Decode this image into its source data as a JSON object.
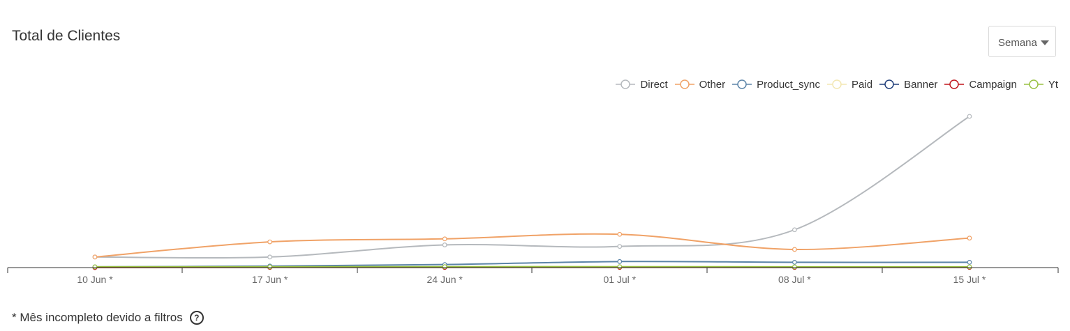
{
  "header": {
    "title": "Total de Clientes",
    "period_select": {
      "selected": "Semana"
    }
  },
  "chart_data": {
    "type": "line",
    "title": "Total de Clientes",
    "xlabel": "",
    "ylabel": "",
    "categories": [
      "10 Jun *",
      "17 Jun *",
      "24 Jun *",
      "01 Jul *",
      "08 Jul *",
      "15 Jul *"
    ],
    "ylim": [
      0,
      100
    ],
    "grid": false,
    "legend_position": "top-right",
    "series": [
      {
        "name": "Direct",
        "color": "#b5b9bd",
        "values": [
          7,
          7,
          15,
          14,
          25,
          100
        ]
      },
      {
        "name": "Other",
        "color": "#f0a267",
        "values": [
          7,
          17,
          19,
          22,
          12,
          19.5
        ]
      },
      {
        "name": "Product_sync",
        "color": "#5b84a8",
        "values": [
          0.5,
          1,
          2,
          4,
          3.5,
          3.5
        ]
      },
      {
        "name": "Paid",
        "color": "#f3e7b2",
        "values": [
          0.2,
          0.3,
          0.4,
          0.5,
          0.4,
          0.4
        ]
      },
      {
        "name": "Banner",
        "color": "#1f3d7a",
        "values": [
          0.1,
          0.2,
          0.2,
          0.3,
          0.2,
          0.2
        ]
      },
      {
        "name": "Campaign",
        "color": "#c0151c",
        "values": [
          0,
          0.1,
          0.1,
          0.1,
          0.1,
          0.1
        ]
      },
      {
        "name": "Yt",
        "color": "#99c142",
        "values": [
          0.5,
          0.5,
          0.6,
          0.6,
          0.5,
          0.5
        ]
      }
    ]
  },
  "footnote": {
    "text": "* Mês incompleto devido a filtros",
    "help_icon": "question-circle-icon",
    "help_glyph": "?"
  }
}
